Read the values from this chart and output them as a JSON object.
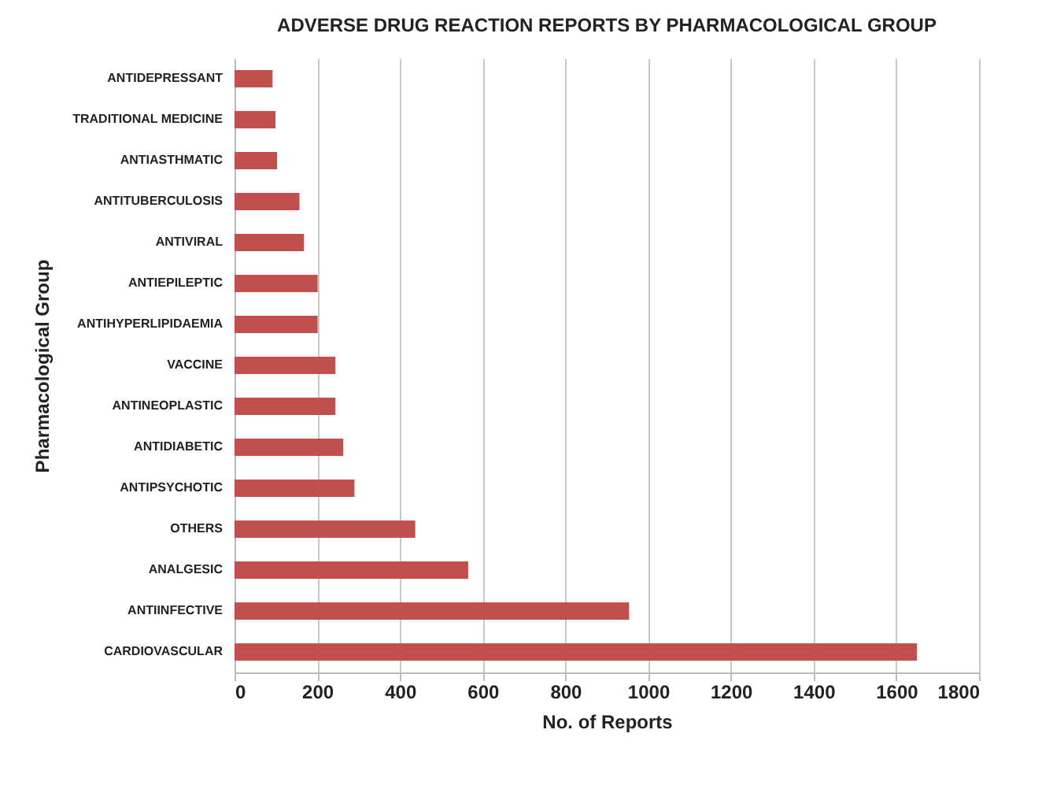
{
  "chart_data": {
    "type": "bar",
    "orientation": "horizontal",
    "title": "ADVERSE DRUG REACTION REPORTS BY PHARMACOLOGICAL GROUP",
    "xlabel": "No. of Reports",
    "ylabel": "Pharmacological Group",
    "categories": [
      "ANTIDEPRESSANT",
      "TRADITIONAL MEDICINE",
      "ANTIASTHMATIC",
      "ANTITUBERCULOSIS",
      "ANTIVIRAL",
      "ANTIEPILEPTIC",
      "ANTIHYPERLIPIDAEMIA",
      "VACCINE",
      "ANTINEOPLASTIC",
      "ANTIDIABETIC",
      "ANTIPSYCHOTIC",
      "OTHERS",
      "ANALGESIC",
      "ANTIINFECTIVE",
      "CARDIOVASCULAR"
    ],
    "values": [
      92,
      99,
      103,
      157,
      168,
      201,
      201,
      244,
      244,
      263,
      290,
      437,
      565,
      954,
      1650
    ],
    "color": "#c0504d",
    "xlim": [
      0,
      1800
    ],
    "xticks": [
      0,
      200,
      400,
      600,
      800,
      1000,
      1200,
      1400,
      1600,
      1800
    ],
    "grid": "x"
  }
}
